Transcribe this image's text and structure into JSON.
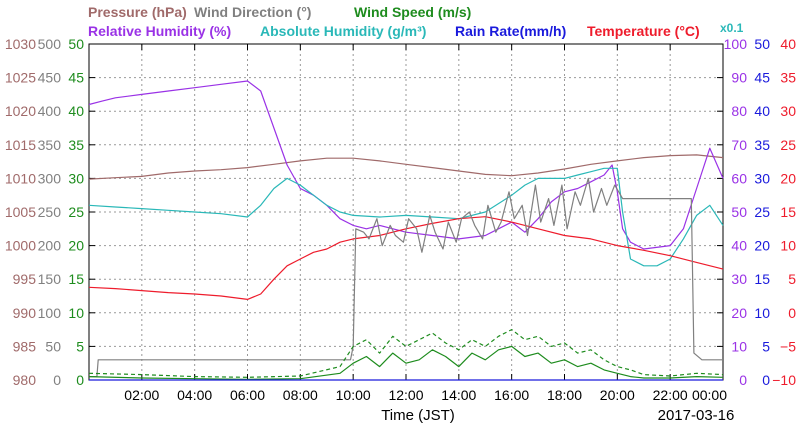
{
  "chart_data": {
    "type": "line",
    "xlabel": "Time (JST)",
    "date_label": "2017-03-16",
    "x_ticks": [
      "02:00",
      "04:00",
      "06:00",
      "08:00",
      "10:00",
      "12:00",
      "14:00",
      "16:00",
      "18:00",
      "20:00",
      "22:00",
      "00:00"
    ],
    "legend": {
      "row1": [
        {
          "label": "Pressure (hPa)",
          "color": "#a06a6a"
        },
        {
          "label": "Wind Direction (°)",
          "color": "#808080"
        },
        {
          "label": "Wind Speed (m/s)",
          "color": "#1e8c1e"
        }
      ],
      "row2": [
        {
          "label": "Relative Humidity (%)",
          "color": "#9a32e6"
        },
        {
          "label": "Absolute Humidity (g/m³)",
          "color": "#2ab8b8"
        },
        {
          "label": "Rain Rate(mm/h)",
          "color": "#1a1adc"
        },
        {
          "label": "Temperature (°C)",
          "color": "#ee1c2c"
        }
      ],
      "abs_note": "x0.1"
    },
    "axes": {
      "pressure": {
        "color": "#a06a6a",
        "ticks": [
          "980",
          "985",
          "990",
          "995",
          "1000",
          "1005",
          "1010",
          "1015",
          "1020",
          "1025",
          "1030"
        ]
      },
      "wind_direction": {
        "color": "#808080",
        "ticks": [
          "0",
          "50",
          "100",
          "150",
          "200",
          "250",
          "300",
          "350",
          "400",
          "450",
          "500"
        ]
      },
      "wind_speed": {
        "color": "#1e8c1e",
        "ticks": [
          "0",
          "5",
          "10",
          "15",
          "20",
          "25",
          "30",
          "35",
          "40",
          "45",
          "50"
        ]
      },
      "humidity": {
        "color": "#9a32e6",
        "ticks": [
          "0",
          "10",
          "20",
          "30",
          "40",
          "50",
          "60",
          "70",
          "80",
          "90",
          "100"
        ]
      },
      "rain": {
        "color": "#1a1adc",
        "ticks": [
          "0",
          "5",
          "10",
          "15",
          "20",
          "25",
          "30",
          "35",
          "40",
          "45",
          "50"
        ]
      },
      "temperature": {
        "color": "#ee1c2c",
        "ticks": [
          "−10",
          "−5",
          "0",
          "5",
          "10",
          "15",
          "20",
          "25",
          "30",
          "35",
          "40"
        ]
      }
    },
    "series": [
      {
        "name": "Pressure (hPa)",
        "axis": "pressure",
        "color": "#a06a6a",
        "x": [
          0,
          1,
          2,
          3,
          4,
          5,
          6,
          7,
          8,
          9,
          10,
          11,
          12,
          13,
          14,
          15,
          16,
          17,
          18,
          19,
          20,
          21,
          22,
          23,
          24
        ],
        "y": [
          1009.9,
          1010.1,
          1010.3,
          1010.8,
          1011.1,
          1011.3,
          1011.6,
          1012.1,
          1012.6,
          1013.0,
          1013.0,
          1012.6,
          1012.1,
          1011.6,
          1011.1,
          1010.6,
          1010.4,
          1010.8,
          1011.4,
          1012.1,
          1012.6,
          1013.1,
          1013.4,
          1013.5,
          1013.1
        ]
      },
      {
        "name": "Relative Humidity (%)",
        "axis": "humidity",
        "color": "#9a32e6",
        "x": [
          0,
          0.5,
          1,
          2,
          3,
          4,
          5,
          6,
          6.5,
          7,
          7.5,
          8,
          8.5,
          9,
          9.5,
          10,
          10.5,
          11,
          12,
          13,
          14,
          15,
          15.5,
          16,
          16.5,
          17,
          17.5,
          18,
          18.5,
          19,
          19.5,
          19.8,
          20,
          20.2,
          20.5,
          21,
          22,
          22.5,
          23,
          23.5,
          24
        ],
        "y": [
          82,
          83,
          84,
          85,
          86,
          87,
          88,
          89,
          86,
          75,
          64,
          57,
          55,
          52,
          48,
          46,
          45,
          46,
          44,
          43,
          42,
          43,
          45,
          47,
          44,
          48,
          53,
          56,
          57,
          59,
          61,
          64,
          56,
          45,
          41,
          39,
          40,
          45,
          57,
          69,
          60
        ]
      },
      {
        "name": "Absolute Humidity (g/m³)",
        "axis": "humidity",
        "color": "#2ab8b8",
        "x": [
          0,
          1,
          2,
          3,
          4,
          5,
          6,
          6.5,
          7,
          7.5,
          8,
          8.5,
          9,
          9.5,
          10,
          11,
          12,
          13,
          14,
          15,
          16,
          16.5,
          17,
          17.5,
          18,
          18.5,
          19,
          19.5,
          20,
          20.2,
          20.5,
          21,
          21.5,
          22,
          22.5,
          23,
          23.5,
          24
        ],
        "y": [
          52,
          51.5,
          51,
          50.5,
          50,
          49.5,
          48.5,
          52,
          57,
          60,
          58,
          55,
          52,
          50,
          49,
          48.5,
          49,
          48.5,
          48,
          50,
          55,
          58,
          60,
          60,
          60,
          61,
          62,
          63,
          63,
          50,
          36,
          34,
          34,
          36,
          42,
          49,
          52,
          46
        ]
      },
      {
        "name": "Temperature (°C)",
        "axis": "temperature",
        "color": "#ee1c2c",
        "x": [
          0,
          1,
          2,
          3,
          4,
          5,
          6,
          6.5,
          7,
          7.5,
          8,
          8.5,
          9,
          9.5,
          10,
          11,
          12,
          13,
          14,
          15,
          16,
          17,
          18,
          19,
          20,
          21,
          22,
          23,
          24
        ],
        "y": [
          3.8,
          3.6,
          3.3,
          3.0,
          2.8,
          2.5,
          2.0,
          2.8,
          5.0,
          7.0,
          8.0,
          9.0,
          9.5,
          10.5,
          11.0,
          11.5,
          12.5,
          13.3,
          14.0,
          14.3,
          13.5,
          12.5,
          11.5,
          11.0,
          10.0,
          9.3,
          8.5,
          7.5,
          6.5
        ]
      },
      {
        "name": "Wind Direction (°)",
        "axis": "wind_direction",
        "color": "#808080",
        "x": [
          0,
          0.3,
          0.35,
          3,
          6,
          9,
          9.9,
          10.0,
          10.1,
          10.4,
          10.6,
          10.9,
          11.1,
          11.4,
          11.6,
          11.9,
          12.1,
          12.4,
          12.6,
          12.9,
          13.1,
          13.4,
          13.6,
          13.9,
          14.1,
          14.4,
          14.6,
          14.9,
          15.1,
          15.4,
          15.6,
          15.9,
          16.1,
          16.4,
          16.6,
          16.9,
          17.1,
          17.4,
          17.6,
          17.9,
          18.1,
          18.4,
          18.6,
          18.9,
          19.1,
          19.4,
          19.6,
          19.9,
          20.2,
          21,
          22,
          22.8,
          22.9,
          23.2,
          24
        ],
        "y": [
          5,
          5,
          30,
          30,
          30,
          30,
          30,
          50,
          225,
          220,
          210,
          240,
          200,
          230,
          215,
          205,
          240,
          225,
          190,
          245,
          220,
          195,
          235,
          205,
          240,
          250,
          230,
          210,
          260,
          220,
          235,
          280,
          240,
          260,
          215,
          290,
          235,
          270,
          230,
          290,
          225,
          280,
          260,
          300,
          250,
          285,
          260,
          290,
          270,
          270,
          270,
          270,
          40,
          30,
          30
        ]
      },
      {
        "name": "Wind Speed (m/s)",
        "axis": "wind_speed",
        "color": "#1e8c1e",
        "x": [
          0,
          2,
          4,
          6,
          8,
          9.5,
          10,
          10.5,
          11,
          11.5,
          12,
          12.5,
          13,
          13.5,
          14,
          14.5,
          15,
          15.5,
          16,
          16.5,
          17,
          17.5,
          18,
          18.5,
          19,
          19.5,
          20,
          20.5,
          21,
          22,
          23,
          24
        ],
        "y": [
          0.5,
          0.3,
          0.2,
          0.1,
          0.2,
          1.0,
          2.5,
          3.5,
          2.0,
          4.0,
          2.5,
          3.0,
          4.5,
          3.5,
          2.0,
          4.0,
          3.0,
          4.5,
          5.0,
          3.5,
          4.0,
          2.5,
          3.0,
          2.0,
          2.5,
          1.5,
          1.0,
          0.5,
          0.3,
          0.3,
          0.5,
          0.4
        ]
      },
      {
        "name": "Wind Speed (m/s)",
        "axis": "wind_speed",
        "color": "#1e8c1e",
        "style": "dashed",
        "x": [
          0,
          2,
          4,
          6,
          8,
          9.5,
          10,
          10.5,
          11,
          11.5,
          12,
          12.5,
          13,
          13.5,
          14,
          14.5,
          15,
          15.5,
          16,
          16.5,
          17,
          17.5,
          18,
          18.5,
          19,
          19.5,
          20,
          20.5,
          21,
          22,
          23,
          24
        ],
        "y": [
          1.0,
          0.8,
          0.5,
          0.4,
          0.6,
          2.0,
          5.0,
          6.0,
          4.0,
          6.5,
          5.0,
          6.0,
          7.0,
          5.5,
          4.5,
          6.0,
          5.0,
          6.5,
          7.5,
          6.0,
          6.5,
          5.0,
          5.5,
          4.0,
          4.5,
          3.0,
          2.0,
          1.5,
          0.8,
          0.6,
          1.0,
          0.8
        ]
      },
      {
        "name": "Rain Rate(mm/h)",
        "axis": "rain",
        "color": "#1a1adc",
        "x": [
          0,
          24
        ],
        "y": [
          0,
          0
        ]
      }
    ],
    "xlim": [
      0,
      24
    ],
    "grid": true
  }
}
